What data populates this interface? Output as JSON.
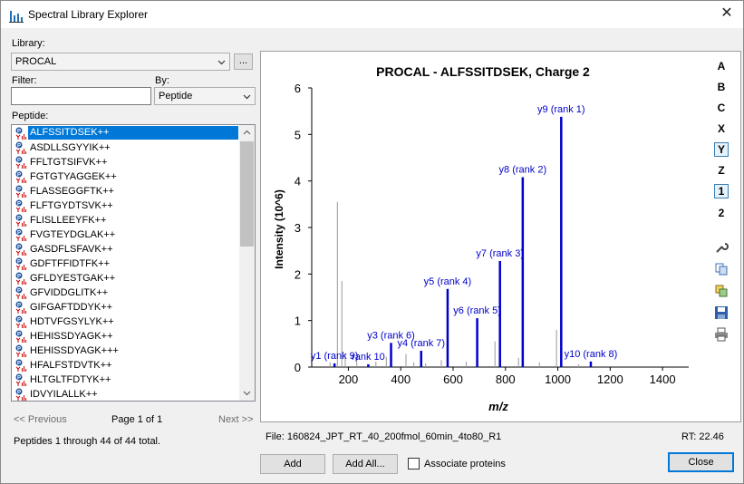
{
  "window": {
    "title": "Spectral Library Explorer"
  },
  "library": {
    "label": "Library:",
    "value": "PROCAL",
    "browse_label": "..."
  },
  "filter": {
    "label": "Filter:",
    "value": ""
  },
  "by": {
    "label": "By:",
    "value": "Peptide"
  },
  "peptide_list": {
    "label": "Peptide:",
    "items": [
      "ALFSSITDSEK++",
      "ASDLLSGYYIK++",
      "FFLTGTSIFVK++",
      "FGTGTYAGGEK++",
      "FLASSEGGFTK++",
      "FLFTGYDTSVK++",
      "FLISLLEEYFK++",
      "FVGTEYDGLAK++",
      "GASDFLSFAVK++",
      "GDFTFFIDTFK++",
      "GFLDYESTGAK++",
      "GFVIDDGLITK++",
      "GIFGAFTDDYK++",
      "HDTVFGSYLYK++",
      "HEHISSDYAGK++",
      "HEHISSDYAGK+++",
      "HFALFSTDVTK++",
      "HLTGLTFDTYK++",
      "IDVYILALLK++"
    ],
    "selected": 0
  },
  "pager": {
    "prev": "<< Previous",
    "page": "Page 1 of 1",
    "next": "Next >>"
  },
  "status": "Peptides 1 through 44 of 44 total.",
  "file": "File: 160824_JPT_RT_40_200fmol_60min_4to80_R1",
  "rt": "RT: 22.46",
  "buttons": {
    "add": "Add",
    "add_all": "Add All...",
    "close": "Close"
  },
  "associate": {
    "label": "Associate proteins",
    "checked": false
  },
  "toolbar": [
    "A",
    "B",
    "C",
    "X",
    "Y",
    "Z",
    "1",
    "2"
  ],
  "toolbar_on": [
    "Y",
    "1"
  ],
  "colors": {
    "accent": "#0078d7",
    "ion": "#0000cc",
    "noise": "#999999"
  },
  "chart_data": {
    "type": "bar",
    "title": "PROCAL - ALFSSITDSEK, Charge 2",
    "xlabel": "m/z",
    "ylabel": "Intensity (10^6)",
    "xlim": [
      60,
      1500
    ],
    "ylim": [
      0,
      6
    ],
    "xticks": [
      200,
      400,
      600,
      800,
      1000,
      1200,
      1400
    ],
    "yticks": [
      0,
      1,
      2,
      3,
      4,
      5,
      6
    ],
    "series": [
      {
        "name": "matched",
        "points": [
          {
            "mz": 147,
            "y": 0.08,
            "label": "y1 (rank 9)"
          },
          {
            "mz": 276,
            "y": 0.06,
            "label": "rank 10"
          },
          {
            "mz": 363,
            "y": 0.52,
            "label": "y3 (rank 6)"
          },
          {
            "mz": 478,
            "y": 0.35,
            "label": "y4 (rank 7)"
          },
          {
            "mz": 579,
            "y": 1.68,
            "label": "y5 (rank 4)"
          },
          {
            "mz": 692,
            "y": 1.05,
            "label": "y6 (rank 5)"
          },
          {
            "mz": 779,
            "y": 2.28,
            "label": "y7 (rank 3)"
          },
          {
            "mz": 866,
            "y": 4.08,
            "label": "y8 (rank 2)"
          },
          {
            "mz": 1013,
            "y": 5.38,
            "label": "y9 (rank 1)"
          },
          {
            "mz": 1126,
            "y": 0.12,
            "label": "y10 (rank 8)"
          }
        ]
      },
      {
        "name": "unmatched",
        "points": [
          {
            "mz": 130,
            "y": 0.1
          },
          {
            "mz": 158,
            "y": 3.55
          },
          {
            "mz": 175,
            "y": 1.85
          },
          {
            "mz": 188,
            "y": 0.3
          },
          {
            "mz": 232,
            "y": 0.15
          },
          {
            "mz": 305,
            "y": 0.12
          },
          {
            "mz": 345,
            "y": 0.22
          },
          {
            "mz": 420,
            "y": 0.28
          },
          {
            "mz": 450,
            "y": 0.1
          },
          {
            "mz": 495,
            "y": 0.08
          },
          {
            "mz": 555,
            "y": 0.15
          },
          {
            "mz": 650,
            "y": 0.12
          },
          {
            "mz": 760,
            "y": 0.55
          },
          {
            "mz": 850,
            "y": 0.2
          },
          {
            "mz": 930,
            "y": 0.1
          },
          {
            "mz": 995,
            "y": 0.8
          },
          {
            "mz": 1080,
            "y": 0.06
          }
        ]
      }
    ]
  }
}
